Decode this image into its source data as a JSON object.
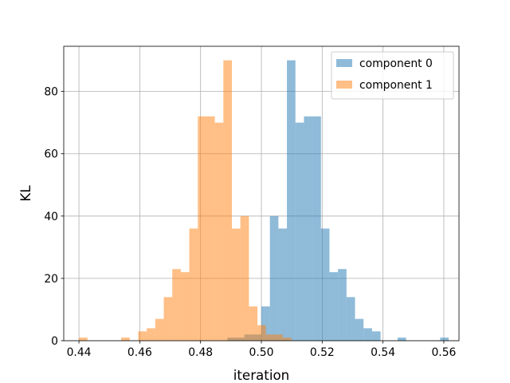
{
  "chart_data": {
    "type": "histogram",
    "xlabel": "iteration",
    "ylabel": "KL",
    "xlim": [
      0.435,
      0.565
    ],
    "ylim": [
      0,
      94.5
    ],
    "xticks": [
      0.44,
      0.46,
      0.48,
      0.5,
      0.52,
      0.54,
      0.56
    ],
    "xtick_labels": [
      "0.44",
      "0.46",
      "0.48",
      "0.50",
      "0.52",
      "0.54",
      "0.56"
    ],
    "yticks": [
      0,
      20,
      40,
      60,
      80
    ],
    "ytick_labels": [
      "0",
      "20",
      "40",
      "60",
      "80"
    ],
    "grid": true,
    "legend_position": "top-right",
    "bin_width": 0.00278,
    "series": [
      {
        "name": "component 0",
        "color": "#1f77b4",
        "alpha": 0.5,
        "bins": [
          [
            0.4888,
            0.4916,
            1
          ],
          [
            0.4916,
            0.4944,
            1
          ],
          [
            0.4944,
            0.4972,
            2
          ],
          [
            0.4972,
            0.5,
            2
          ],
          [
            0.5,
            0.5028,
            11
          ],
          [
            0.5028,
            0.5056,
            40
          ],
          [
            0.5056,
            0.5084,
            36
          ],
          [
            0.5084,
            0.5112,
            90
          ],
          [
            0.5112,
            0.514,
            70
          ],
          [
            0.514,
            0.5168,
            72
          ],
          [
            0.5168,
            0.5196,
            72
          ],
          [
            0.5196,
            0.5224,
            36
          ],
          [
            0.5224,
            0.5252,
            22
          ],
          [
            0.5252,
            0.528,
            23
          ],
          [
            0.528,
            0.5308,
            14
          ],
          [
            0.5308,
            0.5336,
            7
          ],
          [
            0.5336,
            0.5364,
            4
          ],
          [
            0.5364,
            0.5392,
            3
          ],
          [
            0.5448,
            0.5476,
            1
          ],
          [
            0.5588,
            0.5616,
            1
          ]
        ]
      },
      {
        "name": "component 1",
        "color": "#ff7f0e",
        "alpha": 0.5,
        "bins": [
          [
            0.44,
            0.4428,
            1
          ],
          [
            0.4539,
            0.4567,
            1
          ],
          [
            0.4567,
            0.4595,
            0
          ],
          [
            0.4595,
            0.4623,
            3
          ],
          [
            0.4623,
            0.4651,
            4
          ],
          [
            0.4651,
            0.4679,
            7
          ],
          [
            0.4679,
            0.4707,
            14
          ],
          [
            0.4707,
            0.4735,
            23
          ],
          [
            0.4735,
            0.4763,
            22
          ],
          [
            0.4763,
            0.4791,
            36
          ],
          [
            0.4791,
            0.4819,
            72
          ],
          [
            0.4819,
            0.4847,
            72
          ],
          [
            0.4847,
            0.4875,
            70
          ],
          [
            0.4875,
            0.4903,
            90
          ],
          [
            0.4903,
            0.4931,
            36
          ],
          [
            0.4931,
            0.4959,
            40
          ],
          [
            0.4959,
            0.4987,
            11
          ],
          [
            0.4987,
            0.5015,
            5
          ],
          [
            0.5015,
            0.5043,
            2
          ],
          [
            0.5043,
            0.5071,
            2
          ],
          [
            0.5071,
            0.5099,
            1
          ]
        ]
      }
    ]
  }
}
